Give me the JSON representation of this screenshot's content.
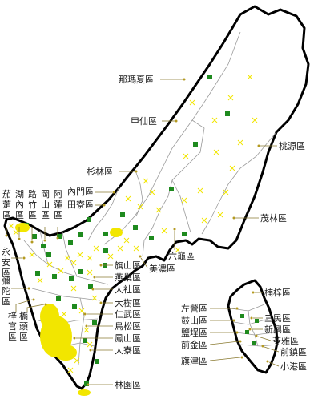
{
  "colors": {
    "outline": "#000000",
    "district_border": "#9a9a9a",
    "green_marker": "#1e8a1e",
    "yellow_marker": "#f2e600",
    "leader_line": "#8a7a30"
  },
  "main_map": {
    "labels": {
      "namaxia": "那瑪夏區",
      "jiaxian": "甲仙區",
      "taoyuan": "桃源區",
      "shanlin": "杉林區",
      "neimen": "內門區",
      "tianliao": "田寮區",
      "maolin": "茂林區",
      "liugui": "六龜區",
      "meinong": "美濃區",
      "qishan": "旗山區",
      "yanchao": "燕巢區",
      "dashe": "大社區",
      "dashu": "大樹區",
      "renwu": "仁武區",
      "niaosong": "鳥松區",
      "fengshan": "鳳山區",
      "daliao": "大寮區",
      "linyuan": "林園區",
      "qieding": "茄萣區",
      "hunei": "湖內區",
      "luzhu": "路竹區",
      "gangshan": "岡山區",
      "alian": "阿蓮區",
      "yongan": "永安區",
      "mituo": "彌陀區",
      "ziguan": "梓官區",
      "qiaotou": "橋頭區"
    }
  },
  "inset_map": {
    "labels": {
      "nanzi": "楠梓區",
      "zuoying": "左營區",
      "gushan": "鼓山區",
      "yancheng": "鹽埕區",
      "qianjin": "前金區",
      "sanmin": "三民區",
      "xinxing": "新興區",
      "lingya": "苓雅區",
      "qianzhen": "前鎮區",
      "cijin": "旗津區",
      "xiaogang": "小港區"
    }
  }
}
